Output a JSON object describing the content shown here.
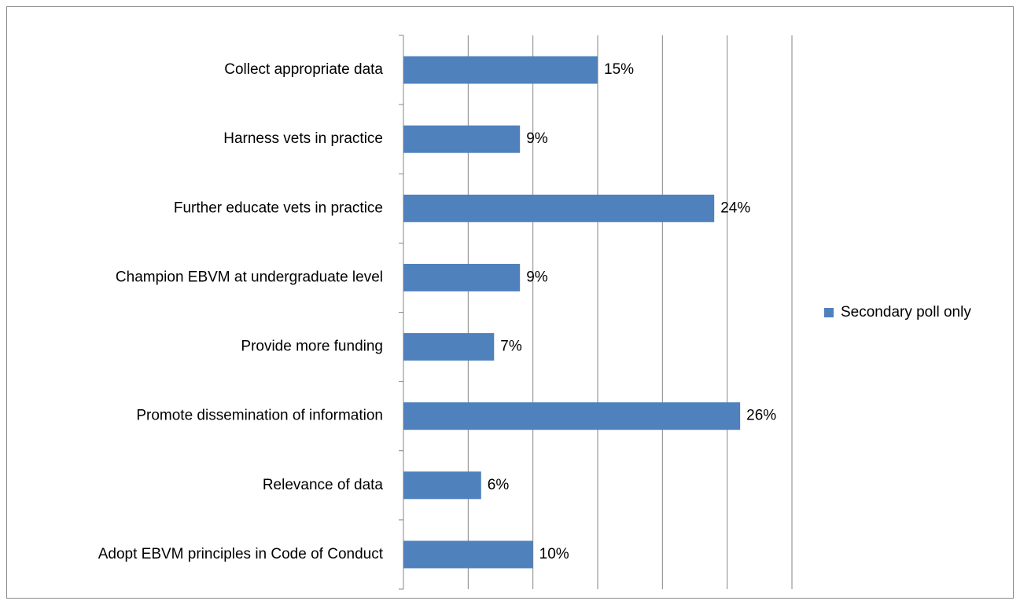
{
  "chart_data": {
    "type": "barh",
    "categories": [
      "Collect appropriate data",
      "Harness vets in practice",
      "Further educate vets in practice",
      "Champion EBVM at undergraduate level",
      "Provide more funding",
      "Promote dissemination of information",
      "Relevance of data",
      "Adopt EBVM principles in Code of Conduct"
    ],
    "series": [
      {
        "name": "Secondary poll only",
        "color": "#4f81bd",
        "values": [
          15,
          9,
          24,
          9,
          7,
          26,
          6,
          10
        ],
        "value_labels": [
          "15%",
          "9%",
          "24%",
          "9%",
          "7%",
          "26%",
          "6%",
          "10%"
        ]
      }
    ],
    "xlim": [
      0,
      30
    ],
    "xticks": [
      0,
      5,
      10,
      15,
      20,
      25,
      30
    ],
    "grid": true,
    "legend": "right"
  }
}
